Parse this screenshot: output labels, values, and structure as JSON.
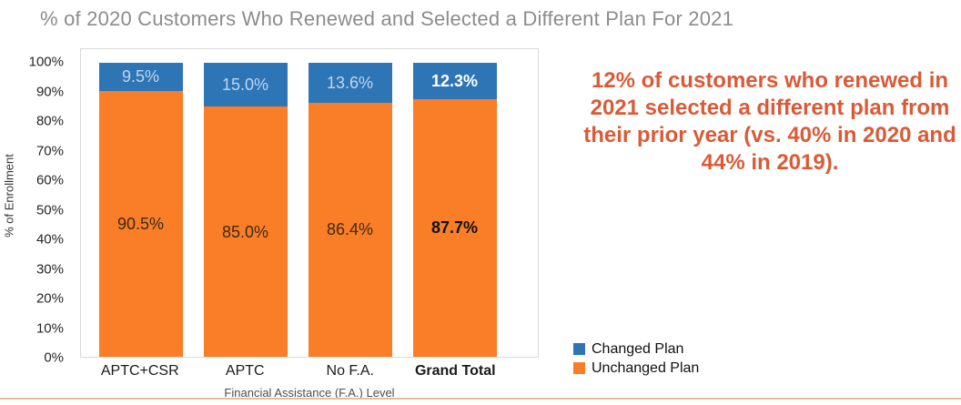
{
  "title": "% of 2020 Customers Who Renewed and Selected a Different Plan For 2021",
  "chart": {
    "ylabel": "% of Enrollment",
    "xlabel": "Financial Assistance (F.A.) Level",
    "yticks": [
      "100%",
      "90%",
      "80%",
      "70%",
      "60%",
      "50%",
      "40%",
      "30%",
      "20%",
      "10%",
      "0%"
    ],
    "legend": [
      {
        "label": "Changed Plan",
        "color": "#2e75b6"
      },
      {
        "label": "Unchanged Plan",
        "color": "#f97e27"
      }
    ]
  },
  "chart_data": {
    "type": "bar",
    "stacked": true,
    "title": "% of 2020 Customers Who Renewed and Selected a Different Plan For 2021",
    "xlabel": "Financial Assistance (F.A.) Level",
    "ylabel": "% of Enrollment",
    "ylim": [
      0,
      100
    ],
    "grid": false,
    "legend_position": "bottom-right",
    "categories": [
      "APTC+CSR",
      "APTC",
      "No F.A.",
      "Grand Total"
    ],
    "series": [
      {
        "name": "Unchanged Plan",
        "color": "#f97e27",
        "values": [
          90.5,
          85.0,
          86.4,
          87.7
        ],
        "labels": [
          "90.5%",
          "85.0%",
          "86.4%",
          "87.7%"
        ]
      },
      {
        "name": "Changed Plan",
        "color": "#2e75b6",
        "values": [
          9.5,
          15.0,
          13.6,
          12.3
        ],
        "labels": [
          "9.5%",
          "15.0%",
          "13.6%",
          "12.3%"
        ]
      }
    ]
  },
  "annotation": {
    "text": "12% of customers who renewed in 2021 selected a different plan from their prior year (vs. 40% in 2020 and 44% in 2019).",
    "color": "#db5a36"
  },
  "decor": {
    "bottom_rule_color": "#e8bc97",
    "title_color": "#8c8c8c",
    "blue_label_color": "#bdd7ee",
    "dark_label_color": "#3e2a12"
  }
}
